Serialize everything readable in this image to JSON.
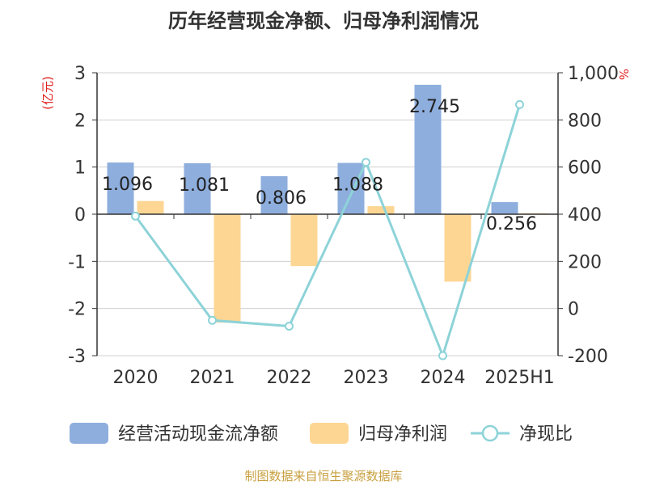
{
  "title": "历年经营现金净额、归母净利润情况",
  "source": "制图数据来自恒生聚源数据库",
  "colors": {
    "ocf": "#8eaedd",
    "np": "#fdd694",
    "ratio": "#8dd3d8",
    "left_unit": "#e02020",
    "right_unit": "#e02020"
  },
  "chart_data": {
    "type": "bar",
    "categories": [
      "2020",
      "2021",
      "2022",
      "2023",
      "2024",
      "2025H1"
    ],
    "y_left": {
      "unit": "(亿元)",
      "range": [
        -3,
        3
      ],
      "ticks": [
        "3",
        "2",
        "1",
        "0",
        "-1",
        "-2",
        "-3"
      ]
    },
    "y_right": {
      "unit": "%",
      "range": [
        -200,
        1000
      ],
      "ticks": [
        "1,000",
        "800",
        "600",
        "400",
        "200",
        "0",
        "-200"
      ]
    },
    "series": [
      {
        "name": "经营活动现金流净额",
        "type": "bar",
        "axis": "left",
        "values": [
          1.096,
          1.081,
          0.806,
          1.088,
          2.745,
          0.256
        ],
        "labels": [
          "1.096",
          "1.081",
          "0.806",
          "1.088",
          "2.745",
          "0.256"
        ]
      },
      {
        "name": "归母净利润",
        "type": "bar",
        "axis": "left",
        "values": [
          0.28,
          -2.3,
          -1.1,
          0.17,
          -1.43,
          0.02
        ]
      },
      {
        "name": "净现比",
        "type": "line",
        "axis": "right",
        "values": [
          392,
          -50,
          -75,
          620,
          -200,
          865
        ]
      }
    ],
    "legend_position": "bottom",
    "grid": true
  }
}
